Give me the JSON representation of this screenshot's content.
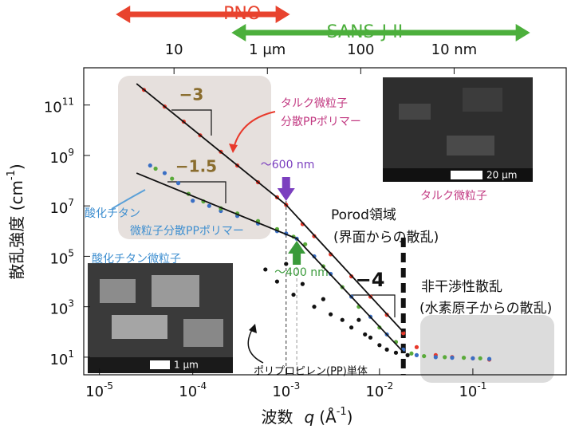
{
  "chart_data": {
    "type": "scatter",
    "xlog": true,
    "ylog": true,
    "xlim": [
      6.8e-06,
      1
    ],
    "ylim": [
      2,
      3000000000000
    ],
    "xticks": [
      {
        "value": 1e-05,
        "label": "10",
        "exponent": "-5"
      },
      {
        "value": 0.0001,
        "label": "10",
        "exponent": "-4"
      },
      {
        "value": 0.001,
        "label": "10",
        "exponent": "-3"
      },
      {
        "value": 0.01,
        "label": "10",
        "exponent": "-2"
      },
      {
        "value": 0.1,
        "label": "10",
        "exponent": "-1"
      }
    ],
    "yticks": [
      {
        "value": 10,
        "label": "10",
        "exponent": "1"
      },
      {
        "value": 1000,
        "label": "10",
        "exponent": "3"
      },
      {
        "value": 100000,
        "label": "10",
        "exponent": "5"
      },
      {
        "value": 10000000,
        "label": "10",
        "exponent": "7"
      },
      {
        "value": 1000000000,
        "label": "10",
        "exponent": "9"
      },
      {
        "value": 100000000000,
        "label": "10",
        "exponent": "11"
      }
    ],
    "x2ticks": [
      {
        "value": 6.3e-05,
        "label": "10"
      },
      {
        "value": 0.00063,
        "label": "1 μm"
      },
      {
        "value": 0.0063,
        "label": "100"
      },
      {
        "value": 0.063,
        "label": "10 nm"
      }
    ],
    "xlabel": {
      "prefix": "波数",
      "symbol": "q",
      "unit": "(Å",
      "exponent": "-1",
      "end": ")"
    },
    "ylabel": {
      "text": "散乱強度 (cm",
      "exponent": "-1",
      "end": ")"
    },
    "ranges": [
      {
        "name": "PNO",
        "color": "#e8432e",
        "x": [
          1.5e-05,
          0.0011
        ]
      },
      {
        "name": "SANS-J-II",
        "color": "#4caf3c",
        "x": [
          0.00026,
          0.41
        ]
      }
    ],
    "series": [
      {
        "color": "#e8392b",
        "x": [
          3e-05,
          5e-05,
          8e-05,
          0.00012,
          0.0002,
          0.0003,
          0.0005,
          0.0008,
          0.001,
          0.0015,
          0.002,
          0.003,
          0.005,
          0.008,
          0.012,
          0.018,
          0.025,
          0.04,
          0.06,
          0.1,
          0.15
        ],
        "values": [
          400000000000,
          87000000000,
          22000000000,
          6300000000,
          1400000000,
          400000000,
          87000000,
          22000000,
          11000000,
          1900000,
          630000,
          120000,
          16000,
          2500,
          480,
          90,
          25,
          12,
          10,
          9,
          8
        ]
      },
      {
        "color": "#3a6fc4",
        "x": [
          3.5e-05,
          5e-05,
          7e-05,
          0.0001,
          0.00015,
          0.0002,
          0.0003,
          0.0005,
          0.0008,
          0.001,
          0.0013,
          0.002,
          0.003,
          0.005,
          0.008,
          0.012,
          0.018,
          0.025,
          0.04,
          0.06,
          0.1,
          0.15
        ],
        "values": [
          400000000,
          200000000,
          80000000,
          16000000,
          10000000,
          6300000,
          4000000,
          2000000,
          1000000,
          800000,
          500000,
          100000,
          20000,
          2500,
          400,
          80,
          20,
          12,
          10,
          9.5,
          9,
          8.5
        ]
      },
      {
        "color": "#5aaa3a",
        "x": [
          4e-05,
          6e-05,
          9e-05,
          0.00013,
          0.0002,
          0.0003,
          0.0005,
          0.0008,
          0.0012,
          0.0016,
          0.0025,
          0.004,
          0.006,
          0.01,
          0.015,
          0.022,
          0.03,
          0.05,
          0.08,
          0.12
        ],
        "values": [
          300000000,
          120000000,
          30000000,
          15000000,
          8000000,
          5000000,
          2500000,
          1200000,
          600000,
          300000,
          40000,
          6000,
          1000,
          150,
          40,
          14,
          11,
          10,
          9.5,
          9
        ]
      },
      {
        "color": "#111111",
        "x": [
          0.0006,
          0.0008,
          0.001,
          0.0012,
          0.0015,
          0.002,
          0.0025,
          0.003,
          0.004,
          0.005,
          0.006,
          0.007,
          0.008,
          0.01,
          0.012,
          0.015,
          0.02
        ],
        "values": [
          30000,
          10000,
          50000,
          3000,
          8000,
          1000,
          2000,
          500,
          300,
          150,
          300,
          80,
          60,
          30,
          20,
          15,
          12
        ]
      }
    ],
    "fit_lines": [
      {
        "color": "#111111",
        "x": [
          2.5e-05,
          0.001,
          0.018
        ],
        "values": [
          700000000000,
          11000000,
          100
        ]
      },
      {
        "color": "#111111",
        "x": [
          2.5e-05,
          0.0013,
          0.018
        ],
        "values": [
          200000000,
          500000,
          16
        ]
      }
    ],
    "slopes": [
      "−3",
      "−1.5",
      "−4"
    ],
    "markers": [
      {
        "x": 0.001,
        "label": "～600 nm",
        "color": "#7b3fbf"
      },
      {
        "x": 0.0013,
        "label": "～400 nm",
        "color": "#3a9a3a"
      }
    ],
    "boundary": 0.018,
    "annotations": [
      {
        "text": "タルク微粒子",
        "color": "#c23a82"
      },
      {
        "text": "分散PPポリマー",
        "color": "#c23a82"
      },
      {
        "text": "Porod領域",
        "color": "#111111"
      },
      {
        "text": "(界面からの散乱)",
        "color": "#111111"
      },
      {
        "text": "酸化チタン",
        "color": "#3f8fd0"
      },
      {
        "text": "微粒子分散PPポリマー",
        "color": "#3f8fd0"
      },
      {
        "text": "酸化チタン微粒子",
        "color": "#3f8fd0"
      },
      {
        "text": "非干渉性散乱",
        "color": "#111111"
      },
      {
        "text": "(水素原子からの散乱)",
        "color": "#111111"
      },
      {
        "text": "ポリプロピレン(PP)単体",
        "color": "#111111"
      },
      {
        "text": "タルク微粒子",
        "color": "#c23a82"
      }
    ],
    "photos": [
      {
        "scale": "20 μm"
      },
      {
        "scale": "1 μm"
      }
    ]
  }
}
